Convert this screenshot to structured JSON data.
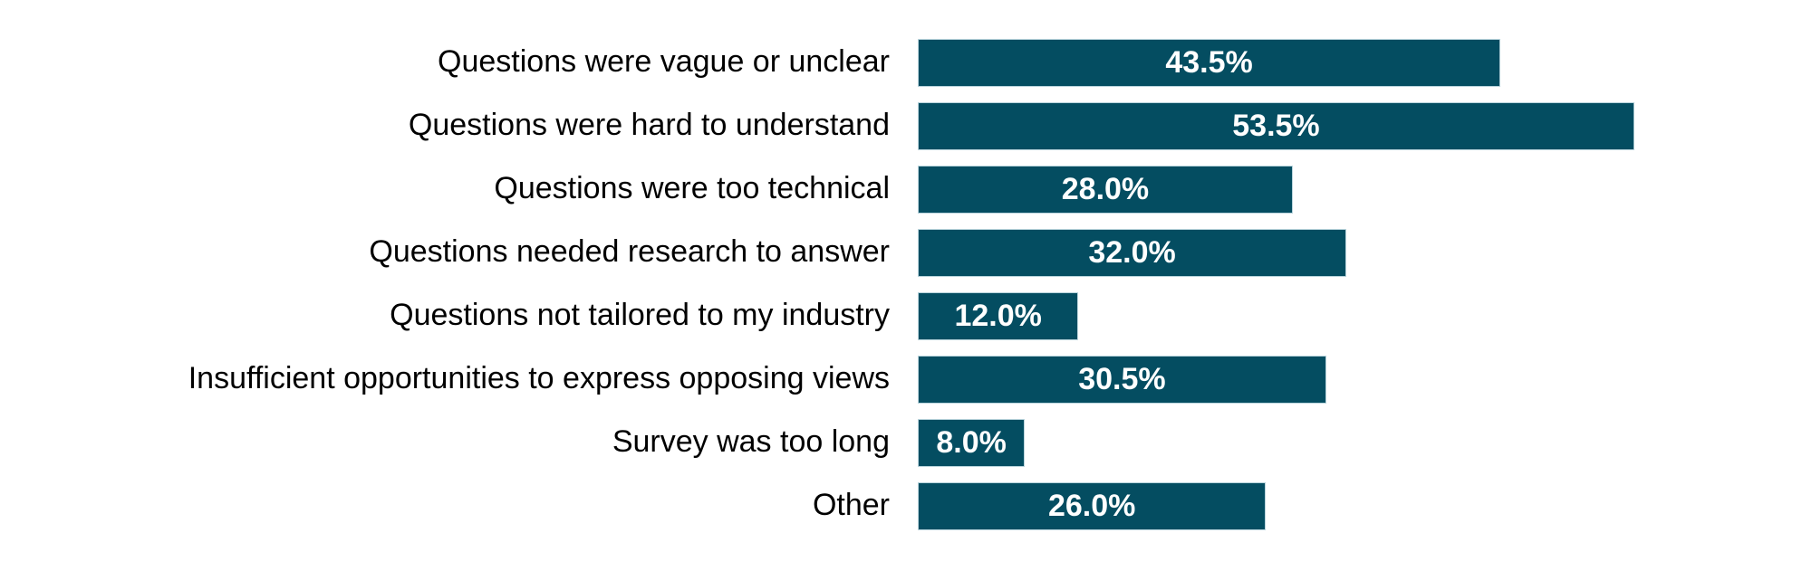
{
  "chart_data": {
    "type": "bar",
    "orientation": "horizontal",
    "title": "",
    "xlabel": "",
    "ylabel": "",
    "categories": [
      "Questions were vague or unclear",
      "Questions were hard to understand",
      "Questions were too technical",
      "Questions needed research to answer",
      "Questions not tailored to my industry",
      "Insufficient opportunities to express opposing views",
      "Survey was too long",
      "Other"
    ],
    "values": [
      43.5,
      53.5,
      28.0,
      32.0,
      12.0,
      30.5,
      8.0,
      26.0
    ],
    "value_labels": [
      "43.5%",
      "53.5%",
      "28.0%",
      "32.0%",
      "12.0%",
      "30.5%",
      "8.0%",
      "26.0%"
    ],
    "xlim": [
      0,
      60
    ],
    "grid": false,
    "legend": null,
    "axes_visible": false,
    "value_label_position": "inside-center",
    "colors": {
      "bar_fill": "#044D61",
      "bar_border": "#B9D4DC",
      "value_label": "#FFFFFF",
      "category_label": "#000000",
      "background": "#FFFFFF"
    }
  }
}
